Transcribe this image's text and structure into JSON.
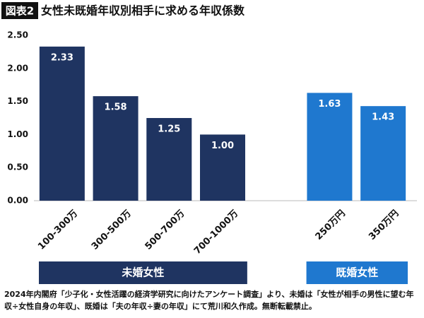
{
  "chart_data": {
    "type": "bar",
    "badge": "図表2",
    "title": "女性未既婚年収別相手に求める年収係数",
    "ylim": [
      0,
      2.5
    ],
    "yticks": [
      {
        "value": 0,
        "label": "0.00"
      },
      {
        "value": 0.5,
        "label": "0.50"
      },
      {
        "value": 1,
        "label": "1.00"
      },
      {
        "value": 1.5,
        "label": "1.50"
      },
      {
        "value": 2,
        "label": "2.00"
      },
      {
        "value": 2.5,
        "label": "2.50"
      }
    ],
    "groups": [
      {
        "name": "未婚女性",
        "color": "#1f3461",
        "categories": [
          "100-300万",
          "300-500万",
          "500-700万",
          "700-1000万"
        ],
        "values": [
          2.33,
          1.58,
          1.25,
          1
        ],
        "value_labels": [
          "2.33",
          "1.58",
          "1.25",
          "1.00"
        ]
      },
      {
        "name": "既婚女性",
        "color": "#1f78cf",
        "categories": [
          "250万円",
          "350万円"
        ],
        "values": [
          1.63,
          1.43
        ],
        "value_labels": [
          "1.63",
          "1.43"
        ]
      }
    ],
    "note": "2024年内閣府「少子化・女性活躍の経済学研究に向けたアンケート調査」より、未婚は「女性が相手の男性に望む年収÷女性自身の年収」、既婚は「夫の年収÷妻の年収」にて荒川和久作成。無断転載禁止。"
  }
}
